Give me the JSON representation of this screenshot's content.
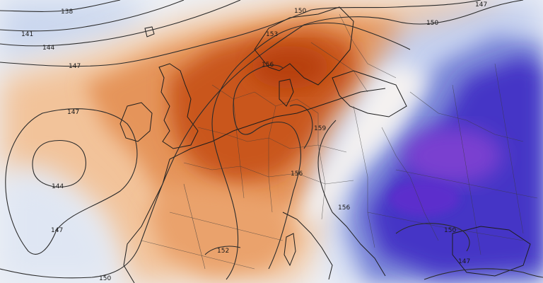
{
  "map": {
    "contour_labels": [
      {
        "id": "c138",
        "text": "138"
      },
      {
        "id": "c141",
        "text": "141"
      },
      {
        "id": "c144a",
        "text": "144"
      },
      {
        "id": "c147a",
        "text": "147"
      },
      {
        "id": "c147b",
        "text": "147"
      },
      {
        "id": "c144b",
        "text": "144"
      },
      {
        "id": "c147c",
        "text": "147"
      },
      {
        "id": "c150a",
        "text": "150"
      },
      {
        "id": "c153",
        "text": "153"
      },
      {
        "id": "c156a",
        "text": "156"
      },
      {
        "id": "c150b",
        "text": "150"
      },
      {
        "id": "c159",
        "text": "159"
      },
      {
        "id": "c156b",
        "text": "156"
      },
      {
        "id": "c156c",
        "text": "156"
      },
      {
        "id": "c150c",
        "text": "150"
      },
      {
        "id": "c152",
        "text": "152"
      },
      {
        "id": "c150d",
        "text": "150"
      },
      {
        "id": "c147d",
        "text": "147"
      },
      {
        "id": "c147e",
        "text": "147"
      }
    ],
    "colors": {
      "warm_strong": "#c8531a",
      "warm_mid": "#e08a4a",
      "warm_light": "#f2c39a",
      "neutral": "#f4f1ee",
      "cold_light": "#c9d6ee",
      "cold_mid": "#6f7fd6",
      "cold_strong": "#3f2fc4",
      "cold_violet": "#7a3fd0"
    }
  }
}
